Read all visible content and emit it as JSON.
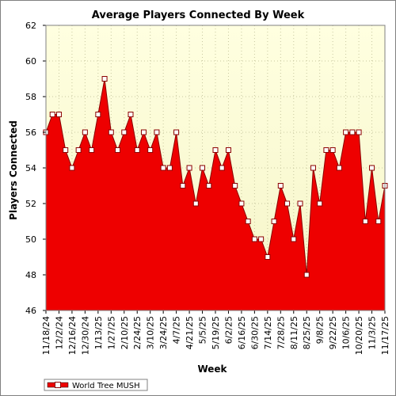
{
  "chart_data": {
    "type": "area",
    "title": "Average Players Connected By Week",
    "xlabel": "Week",
    "ylabel": "Players Connected",
    "ylim": [
      46,
      62
    ],
    "y_ticks": [
      46,
      48,
      50,
      52,
      54,
      56,
      58,
      60,
      62
    ],
    "grid": true,
    "legend_position": "bottom-left",
    "x_tick_labels": [
      "11/18/24",
      "12/2/24",
      "12/16/24",
      "12/30/24",
      "1/13/25",
      "1/27/25",
      "2/10/25",
      "2/24/25",
      "3/10/25",
      "3/24/25",
      "4/7/25",
      "4/21/25",
      "5/5/25",
      "5/19/25",
      "6/2/25",
      "6/16/25",
      "6/30/25",
      "7/14/25",
      "7/28/25",
      "8/11/25",
      "8/25/25",
      "9/8/25",
      "9/22/25",
      "10/6/25",
      "10/20/25",
      "11/3/25",
      "11/17/25"
    ],
    "series": [
      {
        "name": "World Tree MUSH",
        "color": "#ee0000",
        "values": [
          56,
          57,
          57,
          55,
          54,
          55,
          56,
          55,
          57,
          59,
          56,
          55,
          56,
          57,
          55,
          56,
          55,
          56,
          54,
          54,
          56,
          53,
          54,
          52,
          54,
          53,
          55,
          54,
          55,
          53,
          52,
          51,
          50,
          50,
          49,
          51,
          53,
          52,
          50,
          52,
          48,
          54,
          52,
          55,
          55,
          54,
          56,
          56,
          56,
          51,
          54,
          51,
          53
        ]
      }
    ]
  }
}
